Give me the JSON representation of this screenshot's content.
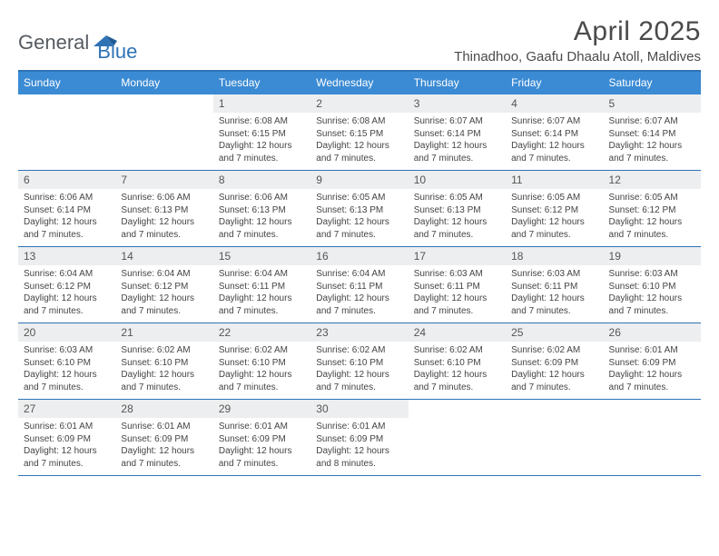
{
  "brand": {
    "word1": "General",
    "word2": "Blue"
  },
  "title": "April 2025",
  "location": "Thinadhoo, Gaafu Dhaalu Atoll, Maldives",
  "colors": {
    "header_bg": "#3b8bd4",
    "header_text": "#ffffff",
    "rule": "#2f73b6",
    "daynum_bg": "#eceeef",
    "text": "#333333",
    "brand_gray": "#555b61",
    "brand_blue": "#2f73b6",
    "page_bg": "#ffffff"
  },
  "typography": {
    "title_fontsize": 30,
    "location_fontsize": 15,
    "dayhdr_fontsize": 12,
    "daynum_fontsize": 12,
    "body_fontsize": 10
  },
  "layout": {
    "columns": 7,
    "rows": 5,
    "first_weekday_index": 2
  },
  "day_headers": [
    "Sunday",
    "Monday",
    "Tuesday",
    "Wednesday",
    "Thursday",
    "Friday",
    "Saturday"
  ],
  "labels": {
    "sunrise": "Sunrise:",
    "sunset": "Sunset:",
    "daylight": "Daylight:"
  },
  "days": [
    {
      "n": 1,
      "sr": "6:08 AM",
      "ss": "6:15 PM",
      "dl": "12 hours and 7 minutes."
    },
    {
      "n": 2,
      "sr": "6:08 AM",
      "ss": "6:15 PM",
      "dl": "12 hours and 7 minutes."
    },
    {
      "n": 3,
      "sr": "6:07 AM",
      "ss": "6:14 PM",
      "dl": "12 hours and 7 minutes."
    },
    {
      "n": 4,
      "sr": "6:07 AM",
      "ss": "6:14 PM",
      "dl": "12 hours and 7 minutes."
    },
    {
      "n": 5,
      "sr": "6:07 AM",
      "ss": "6:14 PM",
      "dl": "12 hours and 7 minutes."
    },
    {
      "n": 6,
      "sr": "6:06 AM",
      "ss": "6:14 PM",
      "dl": "12 hours and 7 minutes."
    },
    {
      "n": 7,
      "sr": "6:06 AM",
      "ss": "6:13 PM",
      "dl": "12 hours and 7 minutes."
    },
    {
      "n": 8,
      "sr": "6:06 AM",
      "ss": "6:13 PM",
      "dl": "12 hours and 7 minutes."
    },
    {
      "n": 9,
      "sr": "6:05 AM",
      "ss": "6:13 PM",
      "dl": "12 hours and 7 minutes."
    },
    {
      "n": 10,
      "sr": "6:05 AM",
      "ss": "6:13 PM",
      "dl": "12 hours and 7 minutes."
    },
    {
      "n": 11,
      "sr": "6:05 AM",
      "ss": "6:12 PM",
      "dl": "12 hours and 7 minutes."
    },
    {
      "n": 12,
      "sr": "6:05 AM",
      "ss": "6:12 PM",
      "dl": "12 hours and 7 minutes."
    },
    {
      "n": 13,
      "sr": "6:04 AM",
      "ss": "6:12 PM",
      "dl": "12 hours and 7 minutes."
    },
    {
      "n": 14,
      "sr": "6:04 AM",
      "ss": "6:12 PM",
      "dl": "12 hours and 7 minutes."
    },
    {
      "n": 15,
      "sr": "6:04 AM",
      "ss": "6:11 PM",
      "dl": "12 hours and 7 minutes."
    },
    {
      "n": 16,
      "sr": "6:04 AM",
      "ss": "6:11 PM",
      "dl": "12 hours and 7 minutes."
    },
    {
      "n": 17,
      "sr": "6:03 AM",
      "ss": "6:11 PM",
      "dl": "12 hours and 7 minutes."
    },
    {
      "n": 18,
      "sr": "6:03 AM",
      "ss": "6:11 PM",
      "dl": "12 hours and 7 minutes."
    },
    {
      "n": 19,
      "sr": "6:03 AM",
      "ss": "6:10 PM",
      "dl": "12 hours and 7 minutes."
    },
    {
      "n": 20,
      "sr": "6:03 AM",
      "ss": "6:10 PM",
      "dl": "12 hours and 7 minutes."
    },
    {
      "n": 21,
      "sr": "6:02 AM",
      "ss": "6:10 PM",
      "dl": "12 hours and 7 minutes."
    },
    {
      "n": 22,
      "sr": "6:02 AM",
      "ss": "6:10 PM",
      "dl": "12 hours and 7 minutes."
    },
    {
      "n": 23,
      "sr": "6:02 AM",
      "ss": "6:10 PM",
      "dl": "12 hours and 7 minutes."
    },
    {
      "n": 24,
      "sr": "6:02 AM",
      "ss": "6:10 PM",
      "dl": "12 hours and 7 minutes."
    },
    {
      "n": 25,
      "sr": "6:02 AM",
      "ss": "6:09 PM",
      "dl": "12 hours and 7 minutes."
    },
    {
      "n": 26,
      "sr": "6:01 AM",
      "ss": "6:09 PM",
      "dl": "12 hours and 7 minutes."
    },
    {
      "n": 27,
      "sr": "6:01 AM",
      "ss": "6:09 PM",
      "dl": "12 hours and 7 minutes."
    },
    {
      "n": 28,
      "sr": "6:01 AM",
      "ss": "6:09 PM",
      "dl": "12 hours and 7 minutes."
    },
    {
      "n": 29,
      "sr": "6:01 AM",
      "ss": "6:09 PM",
      "dl": "12 hours and 7 minutes."
    },
    {
      "n": 30,
      "sr": "6:01 AM",
      "ss": "6:09 PM",
      "dl": "12 hours and 8 minutes."
    }
  ]
}
